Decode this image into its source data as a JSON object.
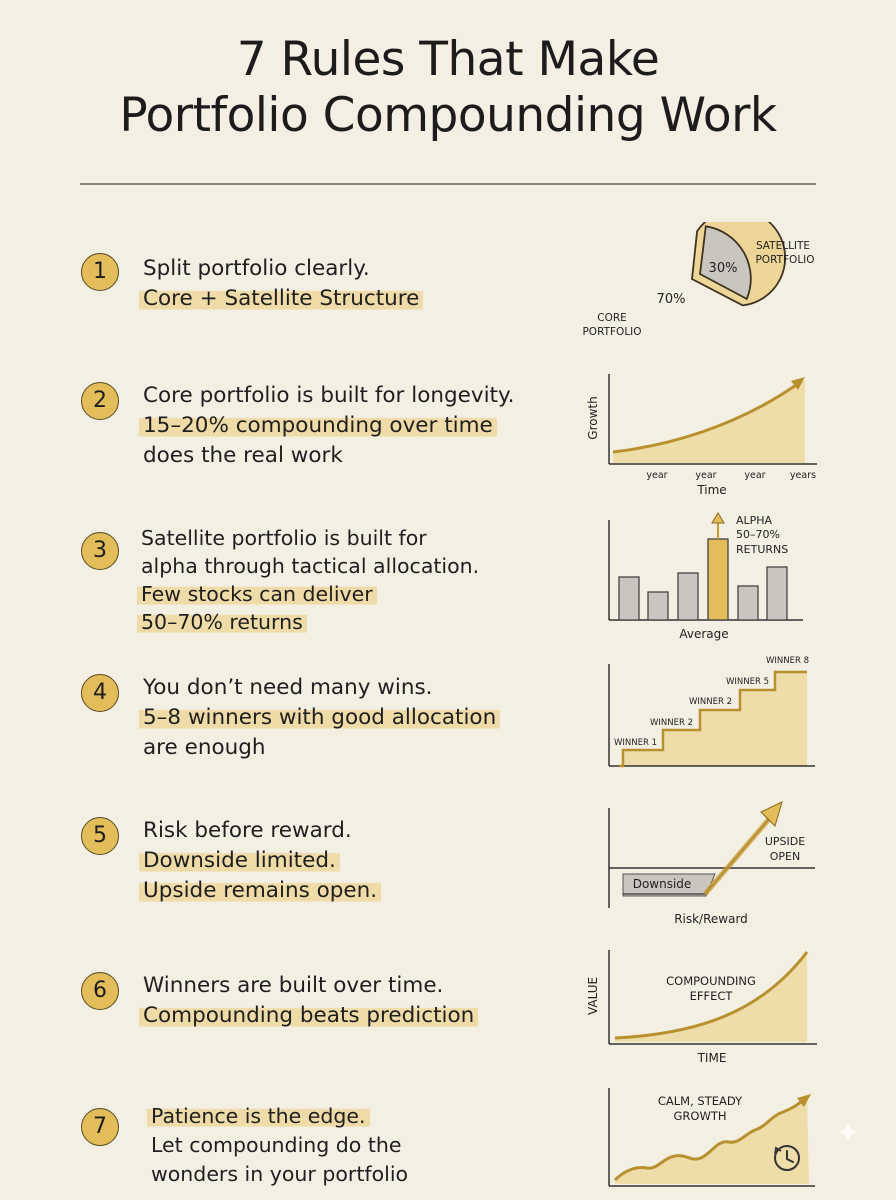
{
  "title": {
    "line1": "7 Rules That Make",
    "line2": "Portfolio Compounding Work"
  },
  "rules": [
    {
      "number": "1",
      "lines": [
        "Split portfolio clearly.",
        "Core + Satellite Structure"
      ],
      "highlighted": [
        false,
        true
      ],
      "figure": {
        "core_label_1": "CORE",
        "core_label_2": "PORTFOLIO",
        "core_value": "70%",
        "satellite_label_1": "SATELLITE",
        "satellite_label_2": "PORTFOLIO",
        "satellite_value": "30%"
      }
    },
    {
      "number": "2",
      "lines": [
        "Core portfolio is built for longevity.",
        "15–20% compounding over time",
        "does the real work"
      ],
      "highlighted": [
        false,
        true,
        false
      ],
      "figure": {
        "ylabel": "Growth",
        "xlabel": "Time",
        "ticks": [
          "year",
          "year",
          "year",
          "years"
        ]
      }
    },
    {
      "number": "3",
      "lines": [
        "Satellite portfolio is built for",
        "alpha through tactical allocation.",
        "Few stocks can deliver",
        "50–70% returns"
      ],
      "highlighted": [
        false,
        false,
        true,
        true
      ],
      "figure": {
        "annotation_1": "ALPHA",
        "annotation_2": "50–70%",
        "annotation_3": "RETURNS",
        "xlabel": "Average"
      }
    },
    {
      "number": "4",
      "lines": [
        "You don’t need many wins.",
        "5–8 winners with good allocation",
        "are enough"
      ],
      "highlighted": [
        false,
        true,
        false
      ],
      "figure": {
        "steps": [
          "WINNER 1",
          "WINNER 2",
          "WINNER 2",
          "WINNER 5",
          "WINNER 8"
        ]
      }
    },
    {
      "number": "5",
      "lines": [
        "Risk before reward.",
        "Downside limited.",
        "Upside remains open."
      ],
      "highlighted": [
        false,
        true,
        true
      ],
      "figure": {
        "downside": "Downside",
        "upside_1": "UPSIDE",
        "upside_2": "OPEN",
        "xlabel": "Risk/Reward"
      }
    },
    {
      "number": "6",
      "lines": [
        "Winners are built over time.",
        "Compounding beats prediction"
      ],
      "highlighted": [
        false,
        true
      ],
      "figure": {
        "ylabel": "VALUE",
        "xlabel": "TIME",
        "annotation_1": "COMPOUNDING",
        "annotation_2": "EFFECT"
      }
    },
    {
      "number": "7",
      "lines": [
        "Patience is the edge.",
        "Let compounding do the",
        "wonders in your portfolio"
      ],
      "highlighted": [
        true,
        false,
        false
      ],
      "figure": {
        "annotation_1": "CALM, STEADY",
        "annotation_2": "GROWTH",
        "icon": "clock-icon"
      }
    }
  ],
  "colors": {
    "background": "#f3efe3",
    "gold": "#e3bd5a",
    "highlight": "#eccb78",
    "gray": "#c9c6c0",
    "ink": "#1f1f1f"
  }
}
